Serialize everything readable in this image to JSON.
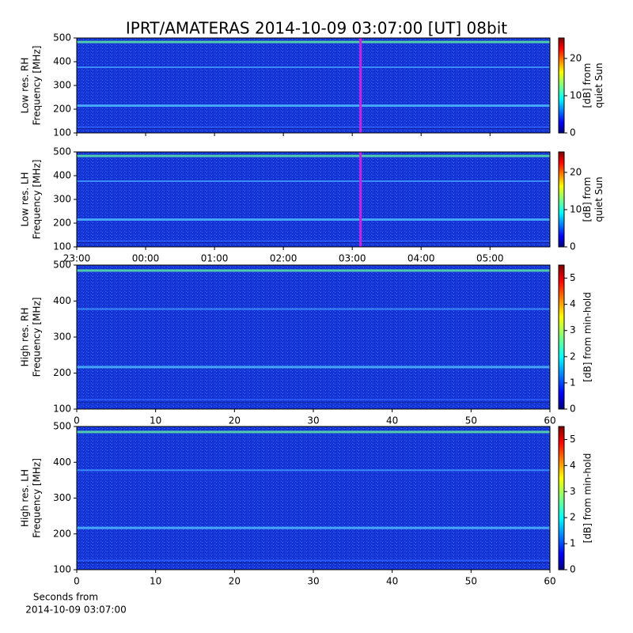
{
  "title": "IPRT/AMATERAS 2014-10-09 03:07:00 [UT]   08bit",
  "chart_data": [
    {
      "type": "heatmap",
      "ylabel": [
        "Low res. RH",
        "Frequency [MHz]"
      ],
      "xlim": [
        23,
        29.87
      ],
      "xticks": [
        23,
        24,
        25,
        26,
        27,
        28,
        29
      ],
      "ylim": [
        100,
        500
      ],
      "yticks": [
        100,
        200,
        300,
        400,
        500
      ],
      "marker": 27.12,
      "marker_color": "#d020e0",
      "colorbar_label": [
        "[dB] from",
        "quiet Sun"
      ],
      "clim": [
        0,
        25.5
      ],
      "cticks": [
        0,
        10,
        20
      ]
    },
    {
      "type": "heatmap",
      "ylabel": [
        "Low res. LH",
        "Frequency [MHz]"
      ],
      "xlim": [
        23,
        29.87
      ],
      "xticks": [
        {
          "value": 23,
          "label": "23:00"
        },
        {
          "value": 24,
          "label": "00:00"
        },
        {
          "value": 25,
          "label": "01:00"
        },
        {
          "value": 26,
          "label": "02:00"
        },
        {
          "value": 27,
          "label": "03:00"
        },
        {
          "value": 28,
          "label": "04:00"
        },
        {
          "value": 29,
          "label": "05:00"
        }
      ],
      "ylim": [
        100,
        500
      ],
      "yticks": [
        100,
        200,
        300,
        400,
        500
      ],
      "marker": 27.12,
      "marker_color": "#d020e0",
      "colorbar_label": [
        "[dB] from",
        "quiet Sun"
      ],
      "clim": [
        0,
        25.5
      ],
      "cticks": [
        0,
        10,
        20
      ]
    },
    {
      "type": "heatmap",
      "ylabel": [
        "High res. RH",
        "Frequency [MHz]"
      ],
      "xlim": [
        0,
        60
      ],
      "xticks": [
        0,
        10,
        20,
        30,
        40,
        50,
        60
      ],
      "ylim": [
        100,
        500
      ],
      "yticks": [
        100,
        200,
        300,
        400,
        500
      ],
      "colorbar_label": [
        "[dB] from min-hold"
      ],
      "clim": [
        0,
        5.5
      ],
      "cticks": [
        0,
        1,
        2,
        3,
        4,
        5
      ]
    },
    {
      "type": "heatmap",
      "ylabel": [
        "High res. LH",
        "Frequency [MHz]"
      ],
      "xlim": [
        0,
        60
      ],
      "xticks": [
        0,
        10,
        20,
        30,
        40,
        50,
        60
      ],
      "xlabel": [
        "Seconds from",
        "2014-10-09 03:07:00"
      ],
      "ylim": [
        100,
        500
      ],
      "yticks": [
        100,
        200,
        300,
        400,
        500
      ],
      "colorbar_label": [
        "[dB] from min-hold"
      ],
      "clim": [
        0,
        5.5
      ],
      "cticks": [
        0,
        1,
        2,
        3,
        4,
        5
      ]
    }
  ]
}
